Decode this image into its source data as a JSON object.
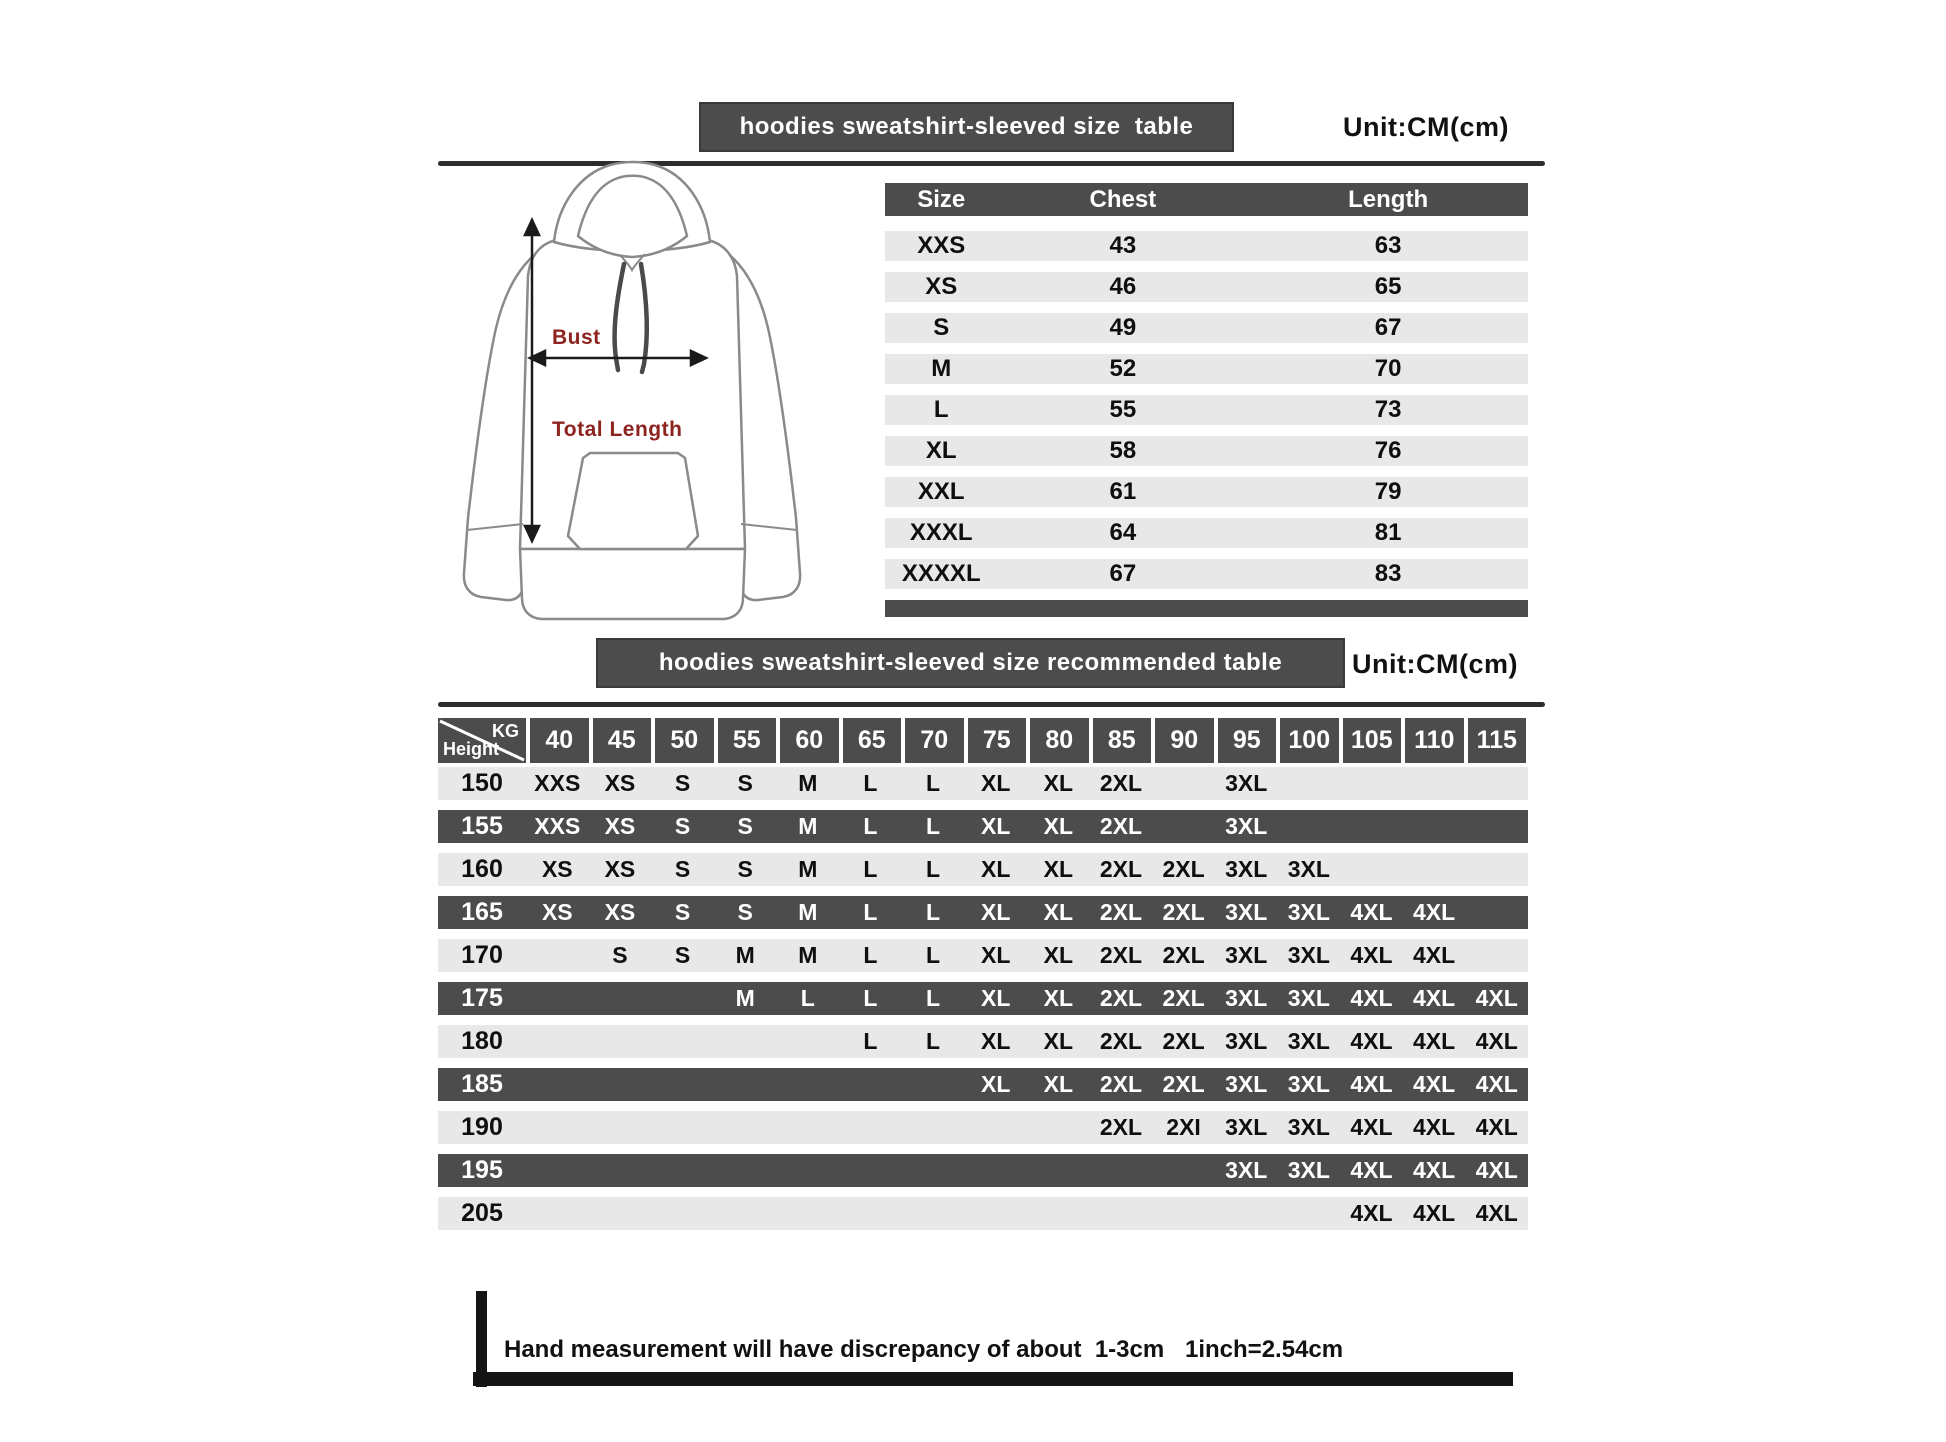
{
  "header": {
    "title1": "hoodies sweatshirt-sleeved size  table",
    "unit1": "Unit:CM(cm)",
    "title2": "hoodies sweatshirt-sleeved size recommended table",
    "unit2": "Unit:CM(cm)"
  },
  "diagram": {
    "bust_label": "Bust",
    "total_length_label": "Total Length"
  },
  "size_table": {
    "columns": [
      "Size",
      "Chest",
      "Length"
    ],
    "rows": [
      {
        "size": "XXS",
        "chest": "43",
        "length": "63"
      },
      {
        "size": "XS",
        "chest": "46",
        "length": "65"
      },
      {
        "size": "S",
        "chest": "49",
        "length": "67"
      },
      {
        "size": "M",
        "chest": "52",
        "length": "70"
      },
      {
        "size": "L",
        "chest": "55",
        "length": "73"
      },
      {
        "size": "XL",
        "chest": "58",
        "length": "76"
      },
      {
        "size": "XXL",
        "chest": "61",
        "length": "79"
      },
      {
        "size": "XXXL",
        "chest": "64",
        "length": "81"
      },
      {
        "size": "XXXXL",
        "chest": "67",
        "length": "83"
      }
    ]
  },
  "recommended_table": {
    "corner_top": "KG",
    "corner_bottom": "Height",
    "weights": [
      "40",
      "45",
      "50",
      "55",
      "60",
      "65",
      "70",
      "75",
      "80",
      "85",
      "90",
      "95",
      "100",
      "105",
      "110",
      "115"
    ],
    "rows": [
      {
        "height": "150",
        "cells": [
          "XXS",
          "XS",
          "S",
          "S",
          "M",
          "L",
          "L",
          "XL",
          "XL",
          "2XL",
          "",
          "3XL",
          "",
          "",
          "",
          ""
        ]
      },
      {
        "height": "155",
        "cells": [
          "XXS",
          "XS",
          "S",
          "S",
          "M",
          "L",
          "L",
          "XL",
          "XL",
          "2XL",
          "",
          "3XL",
          "",
          "",
          "",
          ""
        ]
      },
      {
        "height": "160",
        "cells": [
          "XS",
          "XS",
          "S",
          "S",
          "M",
          "L",
          "L",
          "XL",
          "XL",
          "2XL",
          "2XL",
          "3XL",
          "3XL",
          "",
          "",
          ""
        ]
      },
      {
        "height": "165",
        "cells": [
          "XS",
          "XS",
          "S",
          "S",
          "M",
          "L",
          "L",
          "XL",
          "XL",
          "2XL",
          "2XL",
          "3XL",
          "3XL",
          "4XL",
          "4XL",
          ""
        ]
      },
      {
        "height": "170",
        "cells": [
          "",
          "S",
          "S",
          "M",
          "M",
          "L",
          "L",
          "XL",
          "XL",
          "2XL",
          "2XL",
          "3XL",
          "3XL",
          "4XL",
          "4XL",
          ""
        ]
      },
      {
        "height": "175",
        "cells": [
          "",
          "",
          "",
          "M",
          "L",
          "L",
          "L",
          "XL",
          "XL",
          "2XL",
          "2XL",
          "3XL",
          "3XL",
          "4XL",
          "4XL",
          "4XL"
        ]
      },
      {
        "height": "180",
        "cells": [
          "",
          "",
          "",
          "",
          "",
          "L",
          "L",
          "XL",
          "XL",
          "2XL",
          "2XL",
          "3XL",
          "3XL",
          "4XL",
          "4XL",
          "4XL"
        ]
      },
      {
        "height": "185",
        "cells": [
          "",
          "",
          "",
          "",
          "",
          "",
          "",
          "XL",
          "XL",
          "2XL",
          "2XL",
          "3XL",
          "3XL",
          "4XL",
          "4XL",
          "4XL"
        ]
      },
      {
        "height": "190",
        "cells": [
          "",
          "",
          "",
          "",
          "",
          "",
          "",
          "",
          "",
          "2XL",
          "2XI",
          "3XL",
          "3XL",
          "4XL",
          "4XL",
          "4XL"
        ]
      },
      {
        "height": "195",
        "cells": [
          "",
          "",
          "",
          "",
          "",
          "",
          "",
          "",
          "",
          "",
          "",
          "3XL",
          "3XL",
          "4XL",
          "4XL",
          "4XL"
        ]
      },
      {
        "height": "205",
        "cells": [
          "",
          "",
          "",
          "",
          "",
          "",
          "",
          "",
          "",
          "",
          "",
          "",
          "",
          "4XL",
          "4XL",
          "4XL"
        ]
      }
    ]
  },
  "footer": {
    "note": "Hand measurement will have discrepancy of about  1-3cm",
    "conversion": "1inch=2.54cm"
  },
  "colors": {
    "dark_band": "#4c4c4c",
    "light_band": "#e8e8e8",
    "accent_red": "#8e2420"
  }
}
